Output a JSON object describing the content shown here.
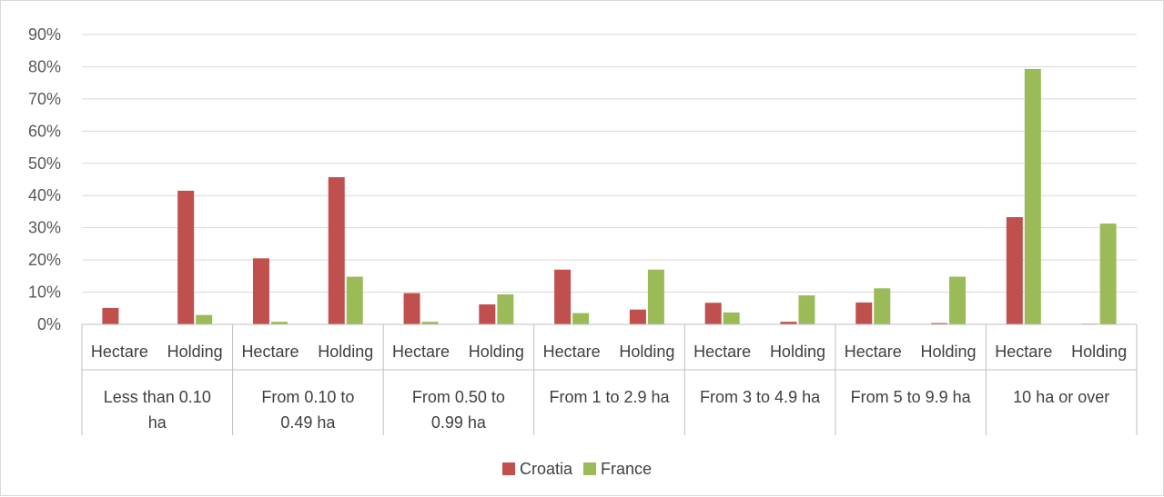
{
  "colors": {
    "croatia": "#c0504d",
    "france": "#9bbb59",
    "grid": "#d9d9d9",
    "axis": "#bfbfbf"
  },
  "chart_data": {
    "type": "bar",
    "title": "",
    "xlabel": "",
    "ylabel": "",
    "ylim": [
      0,
      0.9
    ],
    "yticks": [
      "0%",
      "10%",
      "20%",
      "30%",
      "40%",
      "50%",
      "60%",
      "70%",
      "80%",
      "90%"
    ],
    "grid": true,
    "legend_position": "bottom",
    "groups": [
      {
        "label": [
          "Less than 0.10",
          "ha"
        ]
      },
      {
        "label": [
          "From 0.10 to",
          "0.49 ha"
        ]
      },
      {
        "label": [
          "From 0.50 to",
          "0.99 ha"
        ]
      },
      {
        "label": [
          "From 1 to 2.9 ha"
        ]
      },
      {
        "label": [
          "From 3 to 4.9 ha"
        ]
      },
      {
        "label": [
          "From 5 to 9.9 ha"
        ]
      },
      {
        "label": [
          "10 ha or over"
        ]
      }
    ],
    "subcategories": [
      "Hectare",
      "Holding"
    ],
    "series": [
      {
        "name": "Croatia",
        "values": [
          0.051,
          0.415,
          0.205,
          0.457,
          0.097,
          0.062,
          0.17,
          0.046,
          0.067,
          0.008,
          0.068,
          0.004,
          0.333,
          0.002
        ]
      },
      {
        "name": "France",
        "values": [
          0.0,
          0.029,
          0.008,
          0.148,
          0.008,
          0.093,
          0.035,
          0.17,
          0.037,
          0.09,
          0.112,
          0.148,
          0.793,
          0.313
        ]
      }
    ]
  }
}
